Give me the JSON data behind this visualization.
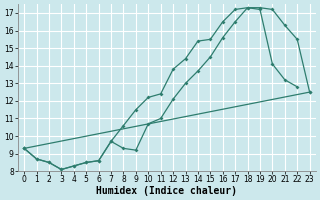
{
  "line_color": "#2e7d6e",
  "bg_color": "#cce8ec",
  "grid_color": "#ffffff",
  "xlabel": "Humidex (Indice chaleur)",
  "ylim": [
    8,
    17.5
  ],
  "xlim": [
    -0.5,
    23.5
  ],
  "yticks": [
    8,
    9,
    10,
    11,
    12,
    13,
    14,
    15,
    16,
    17
  ],
  "xticks": [
    0,
    1,
    2,
    3,
    4,
    5,
    6,
    7,
    8,
    9,
    10,
    11,
    12,
    13,
    14,
    15,
    16,
    17,
    18,
    19,
    20,
    21,
    22,
    23
  ],
  "series1_x": [
    0,
    1,
    2,
    3,
    4,
    5,
    6,
    7,
    8,
    9,
    10,
    11,
    12,
    13,
    14,
    15,
    16,
    17,
    18,
    19,
    20,
    21,
    22,
    23
  ],
  "series1_y": [
    9.3,
    8.7,
    8.5,
    8.1,
    8.3,
    8.5,
    8.6,
    9.7,
    9.3,
    9.2,
    10.7,
    11.0,
    12.1,
    13.0,
    13.7,
    14.5,
    15.6,
    16.5,
    17.3,
    17.3,
    17.2,
    16.3,
    15.5,
    12.5
  ],
  "series2_x": [
    0,
    1,
    2,
    3,
    4,
    5,
    6,
    7,
    8,
    9,
    10,
    11,
    12,
    13,
    14,
    15,
    16,
    17,
    18,
    19,
    20,
    21,
    22
  ],
  "series2_y": [
    9.3,
    8.7,
    8.5,
    8.1,
    8.3,
    8.5,
    8.6,
    9.7,
    10.6,
    11.5,
    12.2,
    12.4,
    13.8,
    14.4,
    15.4,
    15.5,
    16.5,
    17.2,
    17.3,
    17.2,
    14.1,
    13.2,
    12.8
  ],
  "series3_x": [
    0,
    23
  ],
  "series3_y": [
    9.3,
    12.5
  ],
  "marker": "D",
  "markersize": 2.0,
  "linewidth": 0.9,
  "tick_fontsize": 5.5,
  "label_fontsize": 7.0
}
